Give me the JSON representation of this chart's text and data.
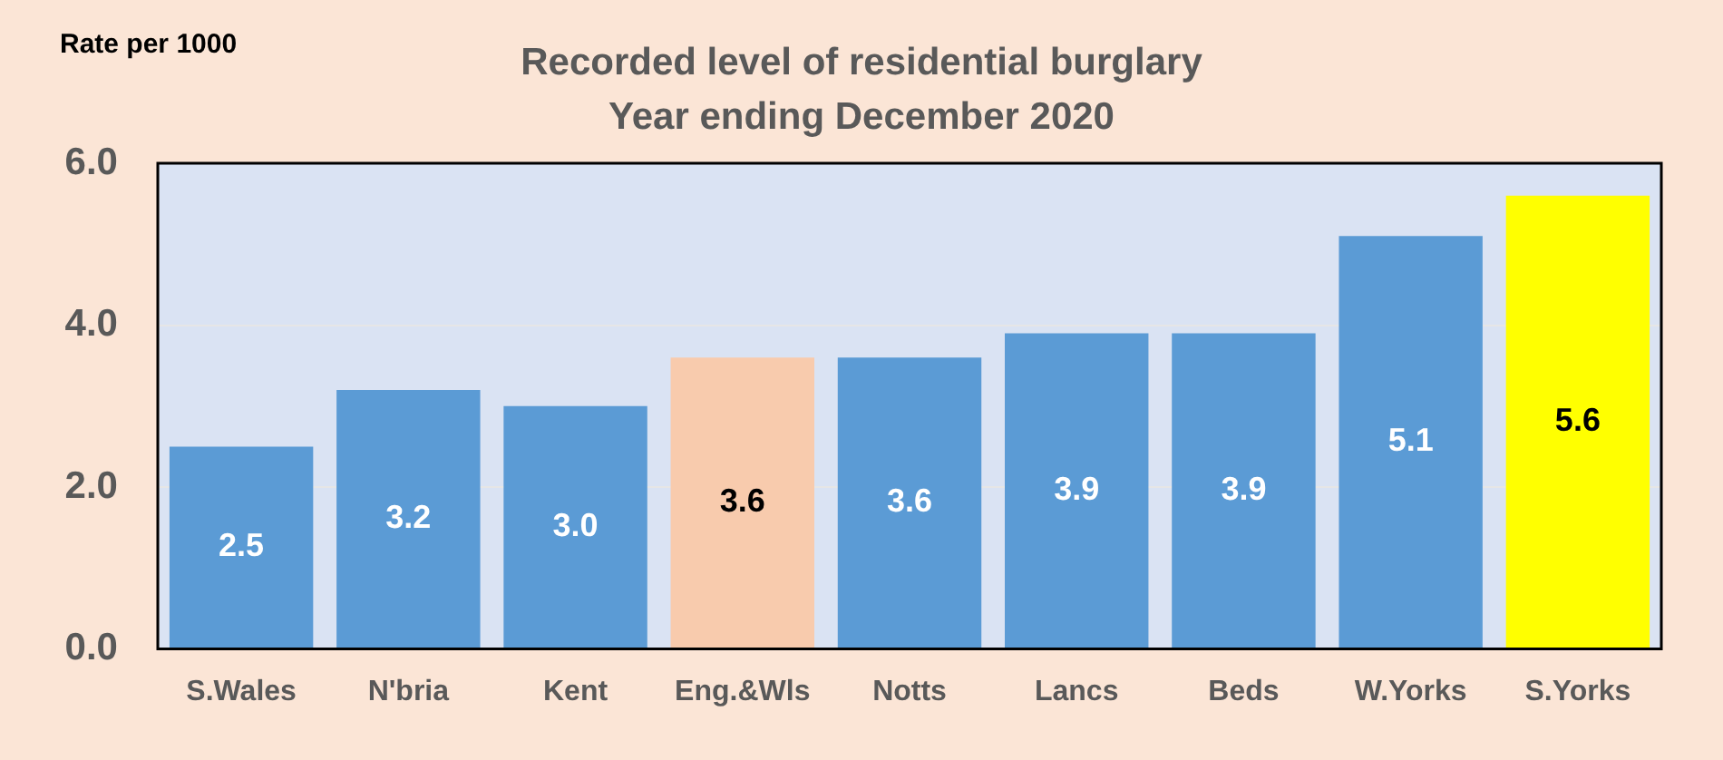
{
  "chart_data": {
    "type": "bar",
    "title": "Recorded level of residential burglary",
    "subtitle": "Year ending December 2020",
    "ylabel": "Rate per 1000",
    "categories": [
      "S.Wales",
      "N'bria",
      "Kent",
      "Eng.&Wls",
      "Notts",
      "Lancs",
      "Beds",
      "W.Yorks",
      "S.Yorks"
    ],
    "values": [
      2.5,
      3.2,
      3.0,
      3.6,
      3.6,
      3.9,
      3.9,
      5.1,
      5.6
    ],
    "colors": [
      "#5b9bd5",
      "#5b9bd5",
      "#5b9bd5",
      "#f8cbad",
      "#5b9bd5",
      "#5b9bd5",
      "#5b9bd5",
      "#5b9bd5",
      "#ffff00"
    ],
    "value_labels": [
      "2.5",
      "3.2",
      "3.0",
      "3.6",
      "3.6",
      "3.9",
      "3.9",
      "5.1",
      "5.6"
    ],
    "ylim": [
      0,
      6
    ],
    "yticks": [
      {
        "value": 0,
        "label": "0.0"
      },
      {
        "value": 2,
        "label": "2.0"
      },
      {
        "value": 4,
        "label": "4.0"
      },
      {
        "value": 6,
        "label": "6.0"
      }
    ],
    "grid": "y"
  }
}
